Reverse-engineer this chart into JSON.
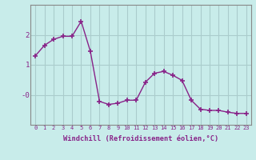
{
  "x": [
    0,
    1,
    2,
    3,
    4,
    5,
    6,
    7,
    8,
    9,
    10,
    11,
    12,
    13,
    14,
    15,
    16,
    17,
    18,
    19,
    20,
    21,
    22,
    23
  ],
  "y": [
    1.3,
    1.65,
    1.85,
    1.95,
    1.95,
    2.45,
    1.45,
    -0.22,
    -0.32,
    -0.28,
    -0.18,
    -0.18,
    0.42,
    0.72,
    0.78,
    0.65,
    0.48,
    -0.18,
    -0.48,
    -0.52,
    -0.52,
    -0.58,
    -0.62,
    -0.62
  ],
  "line_color": "#882288",
  "marker": "+",
  "marker_size": 4,
  "marker_linewidth": 1.2,
  "bg_color": "#c8ecea",
  "grid_color": "#aacccc",
  "xlabel": "Windchill (Refroidissement éolien,°C)",
  "xlabel_color": "#882288",
  "tick_color": "#882288",
  "ylim": [
    -1.0,
    3.0
  ],
  "xlim": [
    -0.5,
    23.5
  ],
  "xticks": [
    0,
    1,
    2,
    3,
    4,
    5,
    6,
    7,
    8,
    9,
    10,
    11,
    12,
    13,
    14,
    15,
    16,
    17,
    18,
    19,
    20,
    21,
    22,
    23
  ],
  "yticks": [
    0.0,
    1.0,
    2.0
  ],
  "ytick_labels": [
    "-0",
    "1",
    "2"
  ],
  "xtick_fontsize": 5.0,
  "ytick_fontsize": 6.5,
  "xlabel_fontsize": 6.2,
  "linewidth": 1.0,
  "spine_color": "#888888"
}
